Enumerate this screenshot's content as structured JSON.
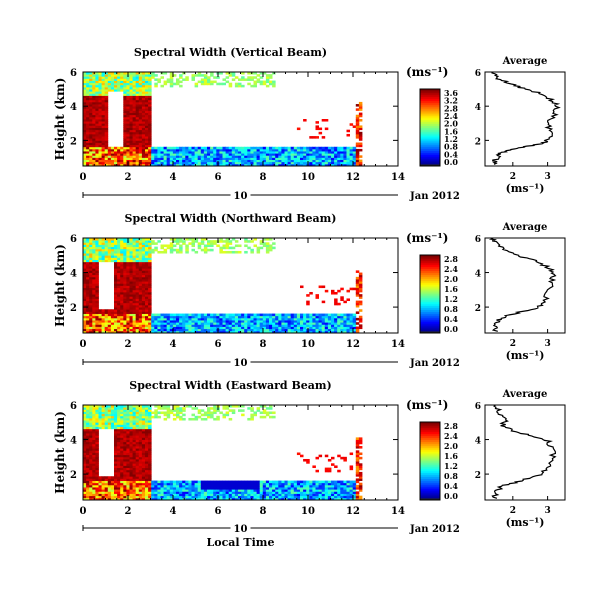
{
  "chart_data": [
    {
      "type": "heatmap",
      "title": "Spectral Width (Vertical Beam)",
      "ylabel": "Height (km)",
      "xlim": [
        0,
        14
      ],
      "ylim": [
        0.5,
        6
      ],
      "xticks": [
        "0",
        "2",
        "4",
        "6",
        "8",
        "10",
        "12",
        "14"
      ],
      "yticks": [
        "2",
        "4",
        "6"
      ],
      "date_scale": {
        "label": "10",
        "suffix": "Jan 2012"
      },
      "colorbar": {
        "unit": "(ms⁻¹)",
        "min": 0.0,
        "max": 3.6,
        "ticks": [
          "0.0",
          "0.4",
          "0.8",
          "1.2",
          "1.6",
          "2.0",
          "2.4",
          "2.8",
          "3.2",
          "3.6"
        ]
      },
      "coverage_notes": "data roughly 0-12.4 h local time; high widths below ~4.5 km before 3 h; low widths 0.5-1.5 km after 3 h",
      "profile": {
        "title": "Average",
        "xlabel": "(ms⁻¹)",
        "xlim": [
          1.2,
          3.5
        ],
        "xticks": [
          "2",
          "3"
        ],
        "ylim": [
          0.5,
          6
        ],
        "yticks": [
          "2",
          "4",
          "6"
        ],
        "points": [
          [
            1.5,
            0.6
          ],
          [
            1.5,
            0.9
          ],
          [
            1.6,
            1.2
          ],
          [
            1.8,
            1.4
          ],
          [
            2.3,
            1.6
          ],
          [
            2.8,
            1.8
          ],
          [
            3.0,
            2.0
          ],
          [
            3.1,
            2.5
          ],
          [
            3.0,
            3.0
          ],
          [
            3.2,
            3.5
          ],
          [
            3.3,
            4.0
          ],
          [
            3.1,
            4.4
          ],
          [
            2.7,
            4.8
          ],
          [
            2.2,
            5.1
          ],
          [
            1.8,
            5.4
          ],
          [
            1.5,
            5.7
          ],
          [
            1.4,
            6.0
          ]
        ]
      }
    },
    {
      "type": "heatmap",
      "title": "Spectral Width (Northward Beam)",
      "ylabel": "Height (km)",
      "xlim": [
        0,
        14
      ],
      "ylim": [
        0.5,
        6
      ],
      "xticks": [
        "0",
        "2",
        "4",
        "6",
        "8",
        "10",
        "12",
        "14"
      ],
      "yticks": [
        "2",
        "4",
        "6"
      ],
      "date_scale": {
        "label": "10",
        "suffix": "Jan 2012"
      },
      "colorbar": {
        "unit": "(ms⁻¹)",
        "min": 0.0,
        "max": 2.8,
        "ticks": [
          "0.0",
          "0.4",
          "0.8",
          "1.2",
          "1.6",
          "2.0",
          "2.4",
          "2.8"
        ]
      },
      "profile": {
        "title": "Average",
        "xlabel": "(ms⁻¹)",
        "xlim": [
          1.2,
          3.5
        ],
        "xticks": [
          "2",
          "3"
        ],
        "ylim": [
          0.5,
          6
        ],
        "yticks": [
          "2",
          "4",
          "6"
        ],
        "points": [
          [
            1.5,
            0.6
          ],
          [
            1.5,
            1.0
          ],
          [
            1.6,
            1.3
          ],
          [
            2.0,
            1.6
          ],
          [
            2.6,
            1.9
          ],
          [
            2.9,
            2.2
          ],
          [
            3.0,
            2.8
          ],
          [
            3.1,
            3.4
          ],
          [
            3.2,
            3.9
          ],
          [
            3.0,
            4.3
          ],
          [
            2.6,
            4.7
          ],
          [
            2.1,
            5.0
          ],
          [
            1.7,
            5.4
          ],
          [
            1.5,
            5.8
          ],
          [
            1.4,
            6.0
          ]
        ]
      }
    },
    {
      "type": "heatmap",
      "title": "Spectral Width (Eastward Beam)",
      "ylabel": "Height (km)",
      "xlabel": "Local Time",
      "xlim": [
        0,
        14
      ],
      "ylim": [
        0.5,
        6
      ],
      "xticks": [
        "0",
        "2",
        "4",
        "6",
        "8",
        "10",
        "12",
        "14"
      ],
      "yticks": [
        "2",
        "4",
        "6"
      ],
      "date_scale": {
        "label": "10",
        "suffix": "Jan 2012"
      },
      "colorbar": {
        "unit": "(ms⁻¹)",
        "min": 0.0,
        "max": 2.8,
        "ticks": [
          "0.0",
          "0.4",
          "0.8",
          "1.2",
          "1.6",
          "2.0",
          "2.4",
          "2.8"
        ]
      },
      "profile": {
        "title": "Average",
        "xlabel": "(ms⁻¹)",
        "xlim": [
          1.2,
          3.5
        ],
        "xticks": [
          "2",
          "3"
        ],
        "ylim": [
          0.5,
          6
        ],
        "yticks": [
          "2",
          "4",
          "6"
        ],
        "points": [
          [
            1.5,
            0.6
          ],
          [
            1.5,
            1.0
          ],
          [
            1.7,
            1.3
          ],
          [
            2.2,
            1.6
          ],
          [
            2.7,
            1.9
          ],
          [
            3.0,
            2.3
          ],
          [
            3.1,
            2.8
          ],
          [
            3.2,
            3.4
          ],
          [
            3.0,
            3.9
          ],
          [
            2.6,
            4.2
          ],
          [
            2.0,
            4.5
          ],
          [
            1.7,
            4.8
          ],
          [
            1.8,
            5.2
          ],
          [
            1.6,
            5.6
          ],
          [
            1.5,
            6.0
          ]
        ]
      }
    }
  ]
}
